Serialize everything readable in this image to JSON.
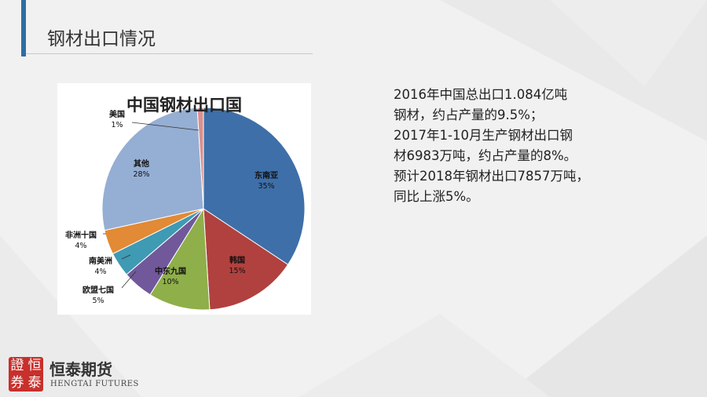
{
  "page": {
    "title": "钢材出口情况"
  },
  "chart_data": {
    "type": "pie",
    "title": "中国钢材出口国",
    "slices": [
      {
        "label": "东南亚",
        "value": 35,
        "value_label": "35%",
        "color": "#3e6fa8"
      },
      {
        "label": "韩国",
        "value": 15,
        "value_label": "15%",
        "color": "#b0413e"
      },
      {
        "label": "中东九国",
        "value": 10,
        "value_label": "10%",
        "color": "#8faf4a"
      },
      {
        "label": "欧盟七国",
        "value": 5,
        "value_label": "5%",
        "color": "#71589a"
      },
      {
        "label": "南美洲",
        "value": 4,
        "value_label": "4%",
        "color": "#3f9ab3"
      },
      {
        "label": "非洲十国",
        "value": 4,
        "value_label": "4%",
        "color": "#e28a35"
      },
      {
        "label": "其他",
        "value": 28,
        "value_label": "28%",
        "color": "#95aed4"
      },
      {
        "label": "美国",
        "value": 1,
        "value_label": "1%",
        "color": "#d8918f"
      }
    ],
    "legend": "none"
  },
  "description": {
    "lines": [
      "2016年中国总出口1.084亿吨",
      "钢材，约占产量的9.5%；",
      "2017年1-10月生产钢材出口钢",
      "材6983万吨，约占产量的8%。",
      "预计2018年钢材出口7857万吨，",
      "同比上涨5%。"
    ]
  },
  "logo": {
    "seal_chars": [
      "證",
      "恒",
      "券",
      "泰"
    ],
    "name": "恒泰期货",
    "name_en": "HENGTAI FUTURES"
  }
}
